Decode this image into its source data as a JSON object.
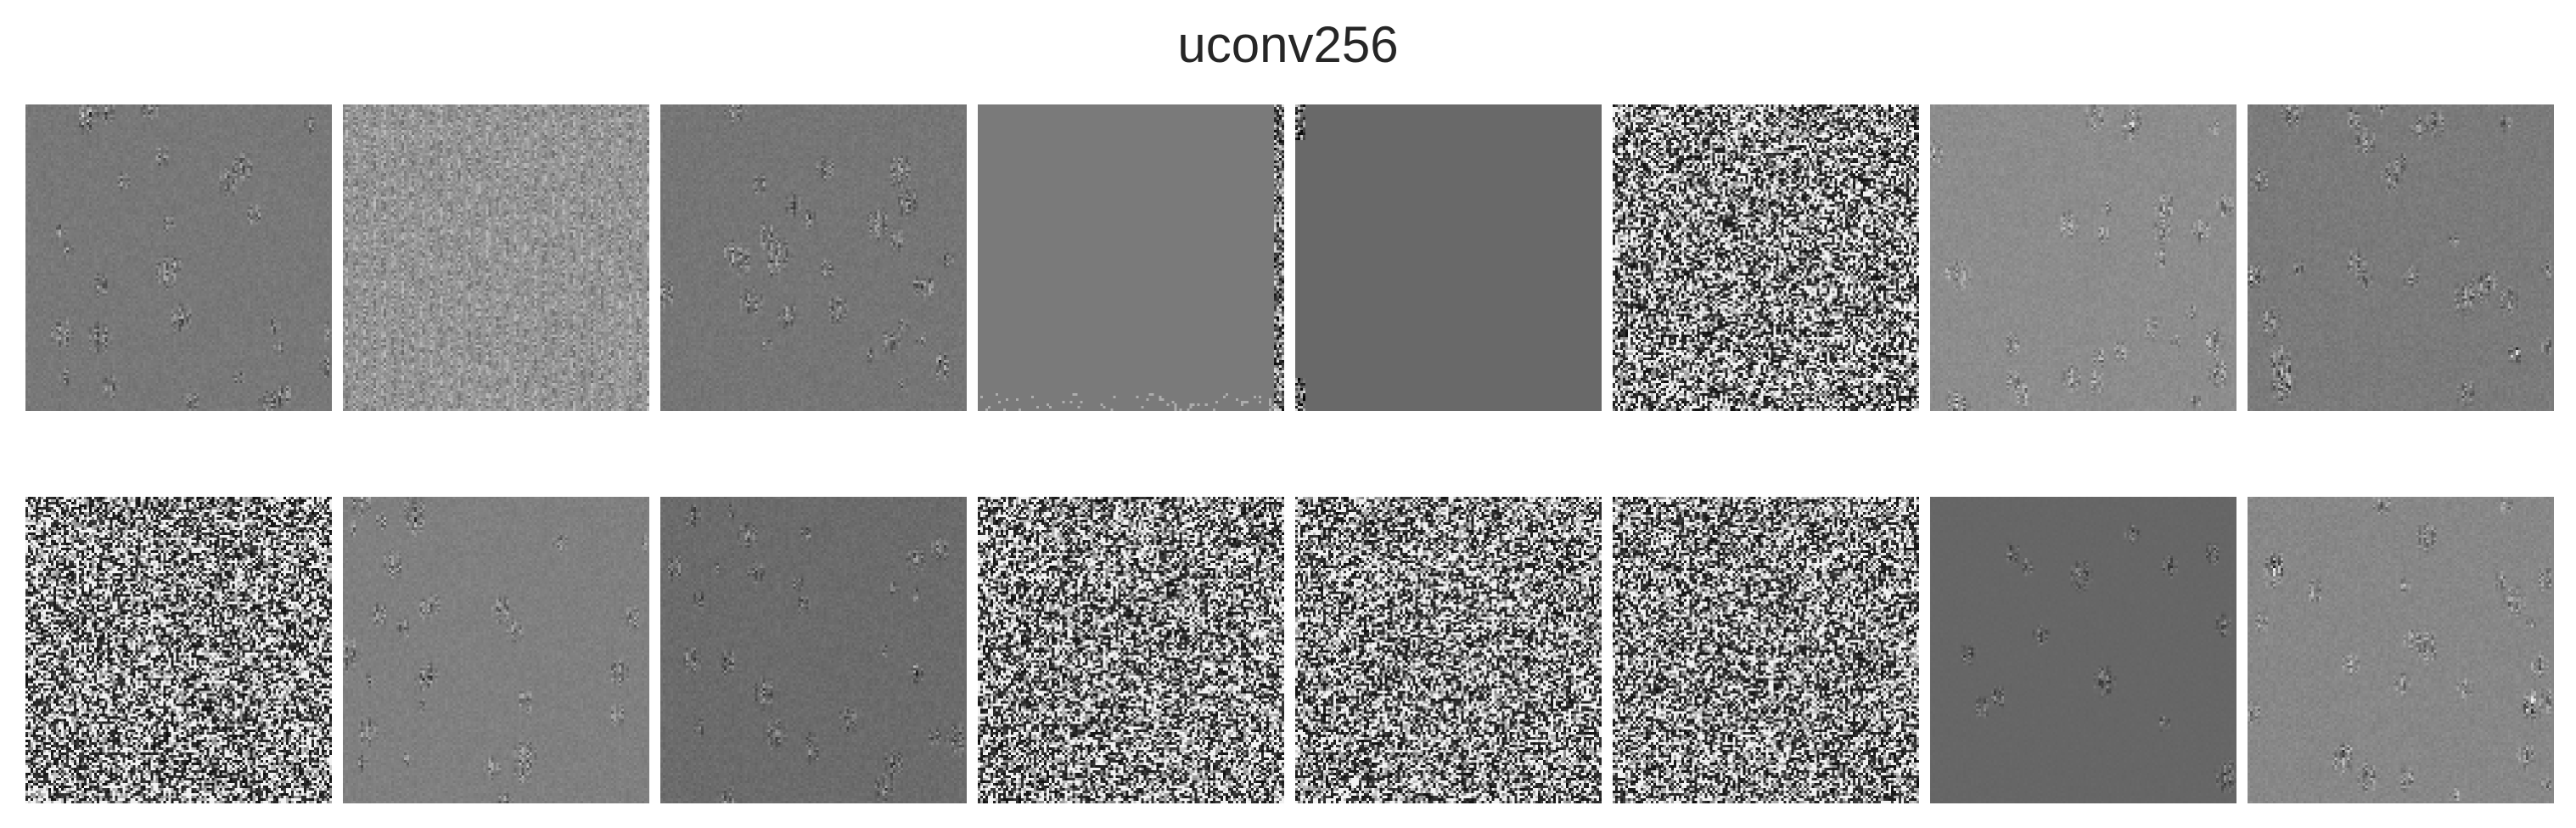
{
  "figure": {
    "title": "uconv256"
  },
  "panels": [
    {
      "id": "r1c1",
      "pattern": "blobs-textured",
      "base_gray": 0.47
    },
    {
      "id": "r1c2",
      "pattern": "uniform-streaks",
      "base_gray": 0.58
    },
    {
      "id": "r1c3",
      "pattern": "blobs-textured",
      "base_gray": 0.46
    },
    {
      "id": "r1c4",
      "pattern": "flat-right-edge",
      "base_gray": 0.48
    },
    {
      "id": "r1c5",
      "pattern": "flat-left-edge",
      "base_gray": 0.41
    },
    {
      "id": "r1c6",
      "pattern": "salt-pepper",
      "base_gray": 0.5
    },
    {
      "id": "r1c7",
      "pattern": "blobs-textured",
      "base_gray": 0.55
    },
    {
      "id": "r1c8",
      "pattern": "blobs-textured",
      "base_gray": 0.48
    },
    {
      "id": "r2c1",
      "pattern": "salt-pepper",
      "base_gray": 0.5
    },
    {
      "id": "r2c2",
      "pattern": "blobs-textured",
      "base_gray": 0.5
    },
    {
      "id": "r2c3",
      "pattern": "blobs-textured",
      "base_gray": 0.42
    },
    {
      "id": "r2c4",
      "pattern": "salt-pepper",
      "base_gray": 0.5
    },
    {
      "id": "r2c5",
      "pattern": "salt-pepper",
      "base_gray": 0.5
    },
    {
      "id": "r2c6",
      "pattern": "salt-pepper",
      "base_gray": 0.5
    },
    {
      "id": "r2c7",
      "pattern": "sparse-blobs",
      "base_gray": 0.4
    },
    {
      "id": "r2c8",
      "pattern": "blobs-textured",
      "base_gray": 0.53
    }
  ]
}
